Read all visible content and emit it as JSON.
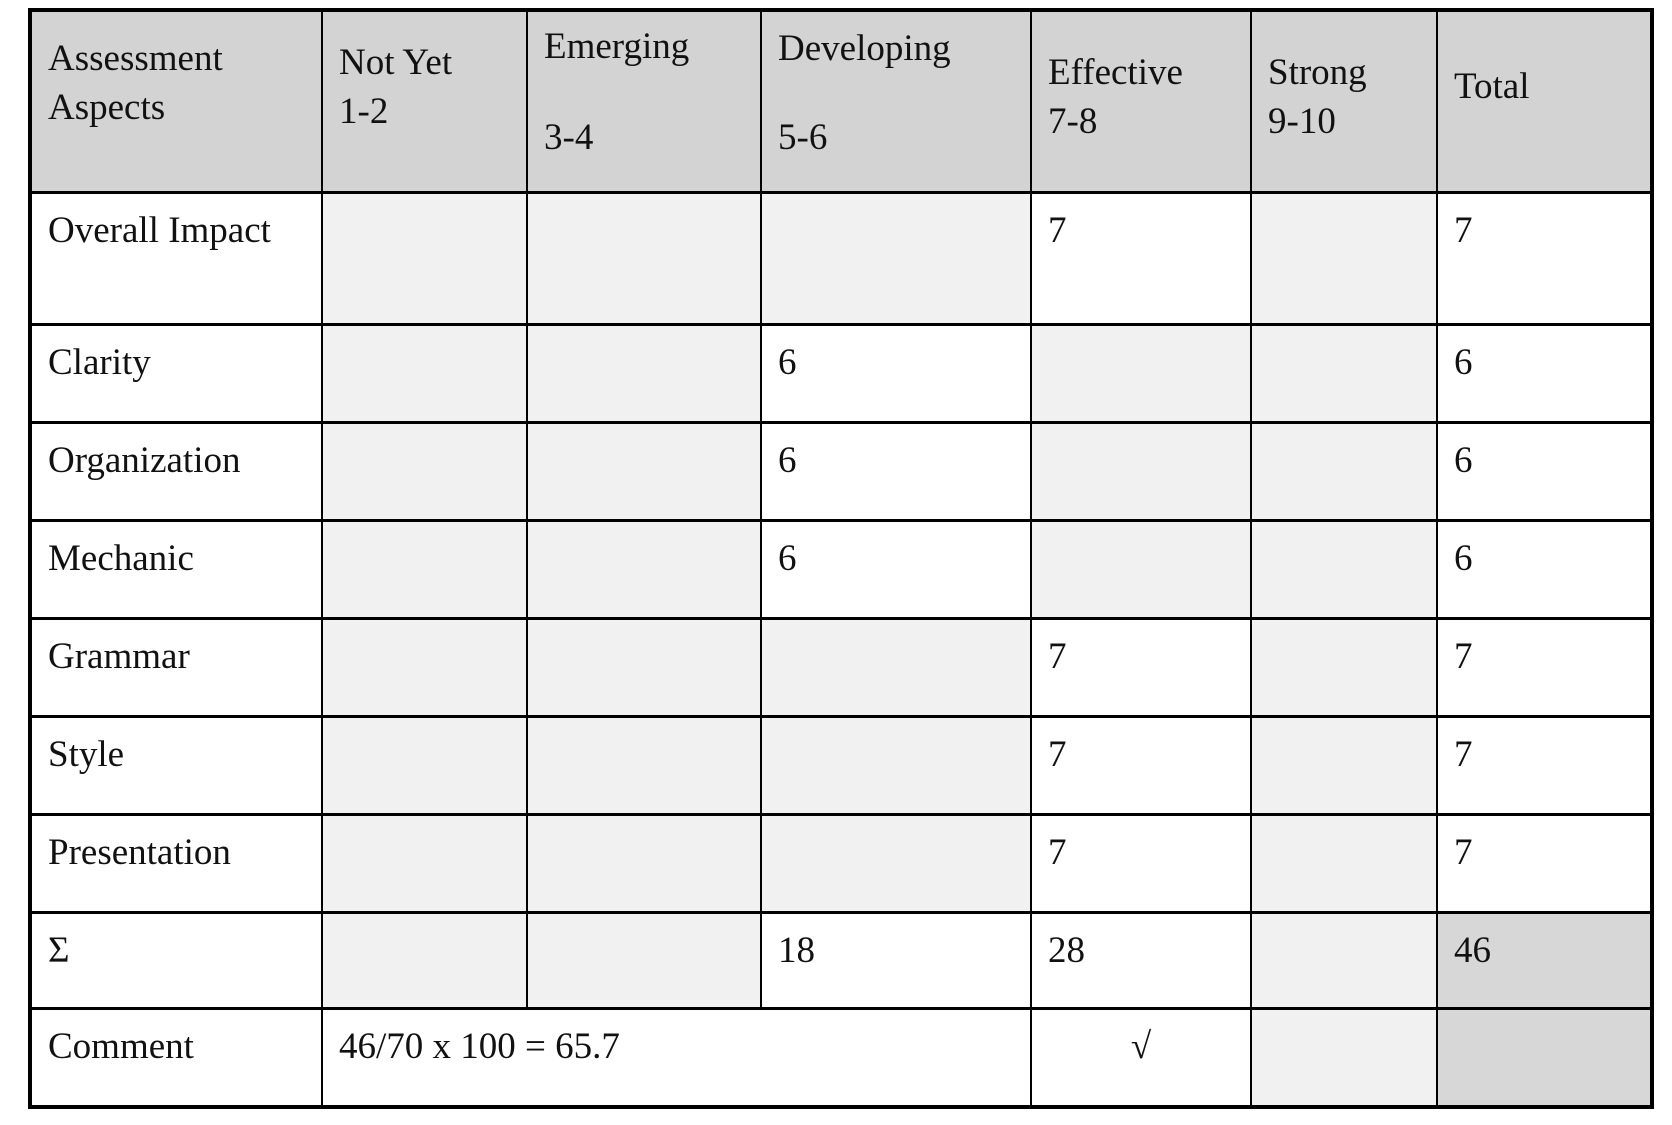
{
  "colors": {
    "header_bg": "#d3d3d3",
    "empty_cell_bg": "#f1f1f1",
    "highlight_bg": "#d7d7d7",
    "cell_bg": "#ffffff",
    "border": "#000000",
    "text": "#111111",
    "page_bg": "#ffffff"
  },
  "table": {
    "name": "assessment-rubric",
    "columns": [
      {
        "label": "Assessment Aspects",
        "range": ""
      },
      {
        "label": "Not Yet",
        "range": "1-2"
      },
      {
        "label": "Emerging",
        "range": "3-4"
      },
      {
        "label": "Developing",
        "range": "5-6"
      },
      {
        "label": "Effective",
        "range": "7-8"
      },
      {
        "label": "Strong",
        "range": "9-10"
      },
      {
        "label": "Total",
        "range": ""
      }
    ],
    "rows": [
      {
        "aspect": "Overall Impact",
        "cells": [
          {
            "text": "",
            "bg": "light"
          },
          {
            "text": "",
            "bg": "light"
          },
          {
            "text": "",
            "bg": "light"
          },
          {
            "text": "7",
            "bg": "white"
          },
          {
            "text": "",
            "bg": "light"
          },
          {
            "text": "7",
            "bg": "white"
          }
        ]
      },
      {
        "aspect": "Clarity",
        "cells": [
          {
            "text": "",
            "bg": "light"
          },
          {
            "text": "",
            "bg": "light"
          },
          {
            "text": "6",
            "bg": "white"
          },
          {
            "text": "",
            "bg": "light"
          },
          {
            "text": "",
            "bg": "light"
          },
          {
            "text": "6",
            "bg": "white"
          }
        ]
      },
      {
        "aspect": "Organization",
        "cells": [
          {
            "text": "",
            "bg": "light"
          },
          {
            "text": "",
            "bg": "light"
          },
          {
            "text": "6",
            "bg": "white"
          },
          {
            "text": "",
            "bg": "light"
          },
          {
            "text": "",
            "bg": "light"
          },
          {
            "text": "6",
            "bg": "white"
          }
        ]
      },
      {
        "aspect": "Mechanic",
        "cells": [
          {
            "text": "",
            "bg": "light"
          },
          {
            "text": "",
            "bg": "light"
          },
          {
            "text": "6",
            "bg": "white"
          },
          {
            "text": "",
            "bg": "light"
          },
          {
            "text": "",
            "bg": "light"
          },
          {
            "text": "6",
            "bg": "white"
          }
        ]
      },
      {
        "aspect": "Grammar",
        "cells": [
          {
            "text": "",
            "bg": "light"
          },
          {
            "text": "",
            "bg": "light"
          },
          {
            "text": "",
            "bg": "light"
          },
          {
            "text": "7",
            "bg": "white"
          },
          {
            "text": "",
            "bg": "light"
          },
          {
            "text": "7",
            "bg": "white"
          }
        ]
      },
      {
        "aspect": "Style",
        "cells": [
          {
            "text": "",
            "bg": "light"
          },
          {
            "text": "",
            "bg": "light"
          },
          {
            "text": "",
            "bg": "light"
          },
          {
            "text": "7",
            "bg": "white"
          },
          {
            "text": "",
            "bg": "light"
          },
          {
            "text": "7",
            "bg": "white"
          }
        ]
      },
      {
        "aspect": "Presentation",
        "cells": [
          {
            "text": "",
            "bg": "light"
          },
          {
            "text": "",
            "bg": "light"
          },
          {
            "text": "",
            "bg": "light"
          },
          {
            "text": "7",
            "bg": "white"
          },
          {
            "text": "",
            "bg": "light"
          },
          {
            "text": "7",
            "bg": "white"
          }
        ]
      },
      {
        "aspect": "Σ",
        "cells": [
          {
            "text": "",
            "bg": "light"
          },
          {
            "text": "",
            "bg": "light"
          },
          {
            "text": "18",
            "bg": "white"
          },
          {
            "text": "28",
            "bg": "white"
          },
          {
            "text": "",
            "bg": "light"
          },
          {
            "text": "46",
            "bg": "gray"
          }
        ]
      },
      {
        "aspect": "Comment",
        "cells": [
          {
            "text": "46/70 x 100 = 65.7",
            "bg": "white",
            "span": 3,
            "align": "left",
            "kind": "comment-formula-cell"
          },
          {
            "text": "√",
            "bg": "white",
            "align": "center",
            "kind": "check-cell"
          },
          {
            "text": "",
            "bg": "light"
          },
          {
            "text": "",
            "bg": "gray"
          }
        ]
      }
    ]
  }
}
